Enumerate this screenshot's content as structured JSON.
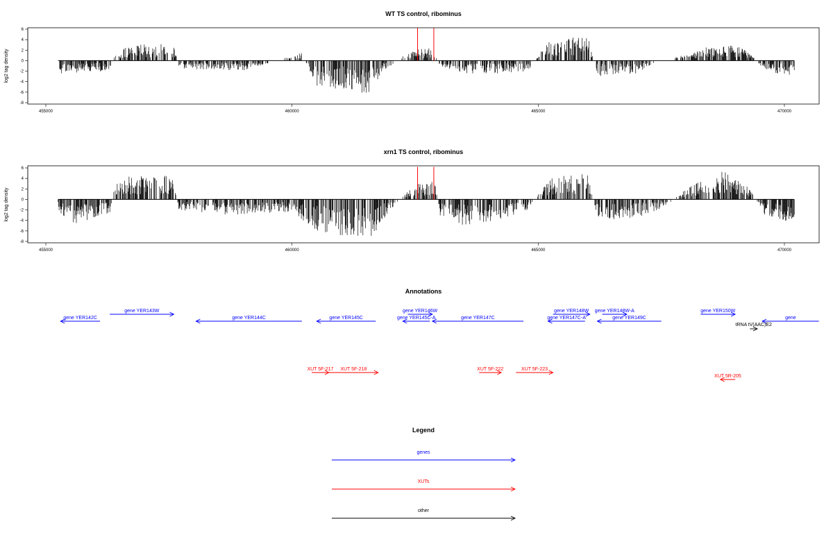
{
  "chart_data": [
    {
      "type": "bar",
      "title": "WT TS control, ribominus",
      "ylabel": "log2 tag density",
      "xlim": [
        455000,
        470200
      ],
      "ylim": [
        -8,
        6
      ],
      "x_ticks": [
        455000,
        460000,
        465000,
        470000
      ],
      "y_ticks": [
        6,
        4,
        2,
        0,
        -2,
        -4,
        -6,
        -8
      ],
      "baseline_range": [
        455250,
        470200
      ],
      "colors": {
        "bars": "#000000",
        "highlight": "#ff0000"
      },
      "highlights": [
        {
          "x": 462550,
          "y": 6.2
        },
        {
          "x": 462880,
          "y": 6.2
        }
      ],
      "density_profile": [
        {
          "x": 455250,
          "y": -2.5
        },
        {
          "x": 456300,
          "y": -2.0
        },
        {
          "x": 456400,
          "y": 1.0
        },
        {
          "x": 456700,
          "y": 3.0
        },
        {
          "x": 457600,
          "y": 3.5
        },
        {
          "x": 457700,
          "y": -1.5
        },
        {
          "x": 459000,
          "y": -2.0
        },
        {
          "x": 460200,
          "y": 1.5
        },
        {
          "x": 460500,
          "y": -5.0
        },
        {
          "x": 461000,
          "y": -5.5
        },
        {
          "x": 461600,
          "y": -6.5
        },
        {
          "x": 461800,
          "y": -2.5
        },
        {
          "x": 462000,
          "y": -1.0
        },
        {
          "x": 462400,
          "y": 2.0
        },
        {
          "x": 462900,
          "y": 2.5
        },
        {
          "x": 463000,
          "y": -1.0
        },
        {
          "x": 463500,
          "y": -2.5
        },
        {
          "x": 464200,
          "y": -2.5
        },
        {
          "x": 464800,
          "y": -2.0
        },
        {
          "x": 465200,
          "y": 4.0
        },
        {
          "x": 465800,
          "y": 4.5
        },
        {
          "x": 466000,
          "y": 5.0
        },
        {
          "x": 466200,
          "y": -3.0
        },
        {
          "x": 467000,
          "y": -2.5
        },
        {
          "x": 467500,
          "y": 0.5
        },
        {
          "x": 468000,
          "y": 1.0
        },
        {
          "x": 468400,
          "y": 2.5
        },
        {
          "x": 469000,
          "y": 3.0
        },
        {
          "x": 469300,
          "y": 1.5
        },
        {
          "x": 469600,
          "y": -2.0
        },
        {
          "x": 470200,
          "y": -3.0
        }
      ]
    },
    {
      "type": "bar",
      "title": "xrn1 TS control, ribominus",
      "ylabel": "log2 tag density",
      "xlim": [
        455000,
        470200
      ],
      "ylim": [
        -8,
        6
      ],
      "x_ticks": [
        455000,
        460000,
        465000,
        470000
      ],
      "y_ticks": [
        6,
        4,
        2,
        0,
        -2,
        -4,
        -6,
        -8
      ],
      "baseline_range": [
        455250,
        470200
      ],
      "colors": {
        "bars": "#000000",
        "highlight": "#ff0000"
      },
      "highlights": [
        {
          "x": 462550,
          "y": 6.2
        },
        {
          "x": 462880,
          "y": 6.2
        }
      ],
      "density_profile": [
        {
          "x": 455250,
          "y": -2.0
        },
        {
          "x": 455500,
          "y": -5.0
        },
        {
          "x": 456300,
          "y": -2.5
        },
        {
          "x": 456400,
          "y": 3.0
        },
        {
          "x": 456700,
          "y": 4.5
        },
        {
          "x": 457600,
          "y": 4.5
        },
        {
          "x": 457700,
          "y": -2.0
        },
        {
          "x": 458500,
          "y": -3.0
        },
        {
          "x": 460000,
          "y": -2.5
        },
        {
          "x": 460500,
          "y": -6.0
        },
        {
          "x": 461000,
          "y": -7.0
        },
        {
          "x": 461600,
          "y": -7.5
        },
        {
          "x": 462000,
          "y": -2.0
        },
        {
          "x": 462500,
          "y": 3.0
        },
        {
          "x": 462900,
          "y": 3.5
        },
        {
          "x": 463000,
          "y": -3.0
        },
        {
          "x": 463500,
          "y": -5.0
        },
        {
          "x": 464200,
          "y": -4.0
        },
        {
          "x": 464800,
          "y": -2.0
        },
        {
          "x": 465200,
          "y": 4.0
        },
        {
          "x": 465800,
          "y": 5.0
        },
        {
          "x": 466000,
          "y": 5.5
        },
        {
          "x": 466200,
          "y": -4.0
        },
        {
          "x": 467000,
          "y": -3.5
        },
        {
          "x": 467500,
          "y": -2.0
        },
        {
          "x": 468000,
          "y": 2.0
        },
        {
          "x": 468400,
          "y": 4.0
        },
        {
          "x": 468800,
          "y": 5.5
        },
        {
          "x": 469300,
          "y": 2.0
        },
        {
          "x": 469600,
          "y": -3.0
        },
        {
          "x": 470200,
          "y": -4.5
        }
      ]
    }
  ],
  "annotations": {
    "title": "Annotations",
    "genes": [
      {
        "label": "gene YER142C",
        "start": 455300,
        "end": 456100,
        "dir": "left",
        "row": 1
      },
      {
        "label": "gene YER143W",
        "start": 456300,
        "end": 457600,
        "dir": "right",
        "row": 0
      },
      {
        "label": "gene YER144C",
        "start": 458050,
        "end": 460200,
        "dir": "left",
        "row": 1
      },
      {
        "label": "gene YER145C",
        "start": 460500,
        "end": 461700,
        "dir": "left",
        "row": 1
      },
      {
        "label": "gene YER146W",
        "start": 462350,
        "end": 462850,
        "dir": "right",
        "row": 0
      },
      {
        "label": "gene YER145C-A",
        "start": 462250,
        "end": 462800,
        "dir": "left",
        "row": 1
      },
      {
        "label": "gene YER147C",
        "start": 462850,
        "end": 464700,
        "dir": "left",
        "row": 1
      },
      {
        "label": "gene YER148W",
        "start": 465300,
        "end": 466050,
        "dir": "right",
        "row": 0
      },
      {
        "label": "gene YER147C-A",
        "start": 465200,
        "end": 465950,
        "dir": "left",
        "row": 1
      },
      {
        "label": "gene YER148W-A",
        "start": 466300,
        "end": 466800,
        "dir": "right",
        "row": 0
      },
      {
        "label": "gene YER149C",
        "start": 466200,
        "end": 467500,
        "dir": "left",
        "row": 1
      },
      {
        "label": "gene YER150W",
        "start": 468300,
        "end": 469000,
        "dir": "right",
        "row": 0
      },
      {
        "label": "gene",
        "start": 469550,
        "end": 470700,
        "dir": "left",
        "row": 1
      }
    ],
    "xuts": [
      {
        "label": "XUT 5F-217",
        "start": 460400,
        "end": 460750,
        "dir": "right",
        "row": 0
      },
      {
        "label": "XUT 5F-218",
        "start": 460750,
        "end": 461750,
        "dir": "right",
        "row": 0
      },
      {
        "label": "XUT 5F-222",
        "start": 463800,
        "end": 464250,
        "dir": "right",
        "row": 0
      },
      {
        "label": "XUT 5F-223",
        "start": 464550,
        "end": 465300,
        "dir": "right",
        "row": 0
      },
      {
        "label": "XUT 5R-205",
        "start": 468700,
        "end": 469000,
        "dir": "left",
        "row": 1
      }
    ],
    "other": [
      {
        "label": "tRNA tV(AAC)E2",
        "start": 469300,
        "end": 469450,
        "dir": "right"
      }
    ]
  },
  "legend": {
    "title": "Legend",
    "items": [
      {
        "label": "genes",
        "color": "#0000ff"
      },
      {
        "label": "XUTs",
        "color": "#ff0000"
      },
      {
        "label": "other",
        "color": "#000000"
      }
    ]
  }
}
